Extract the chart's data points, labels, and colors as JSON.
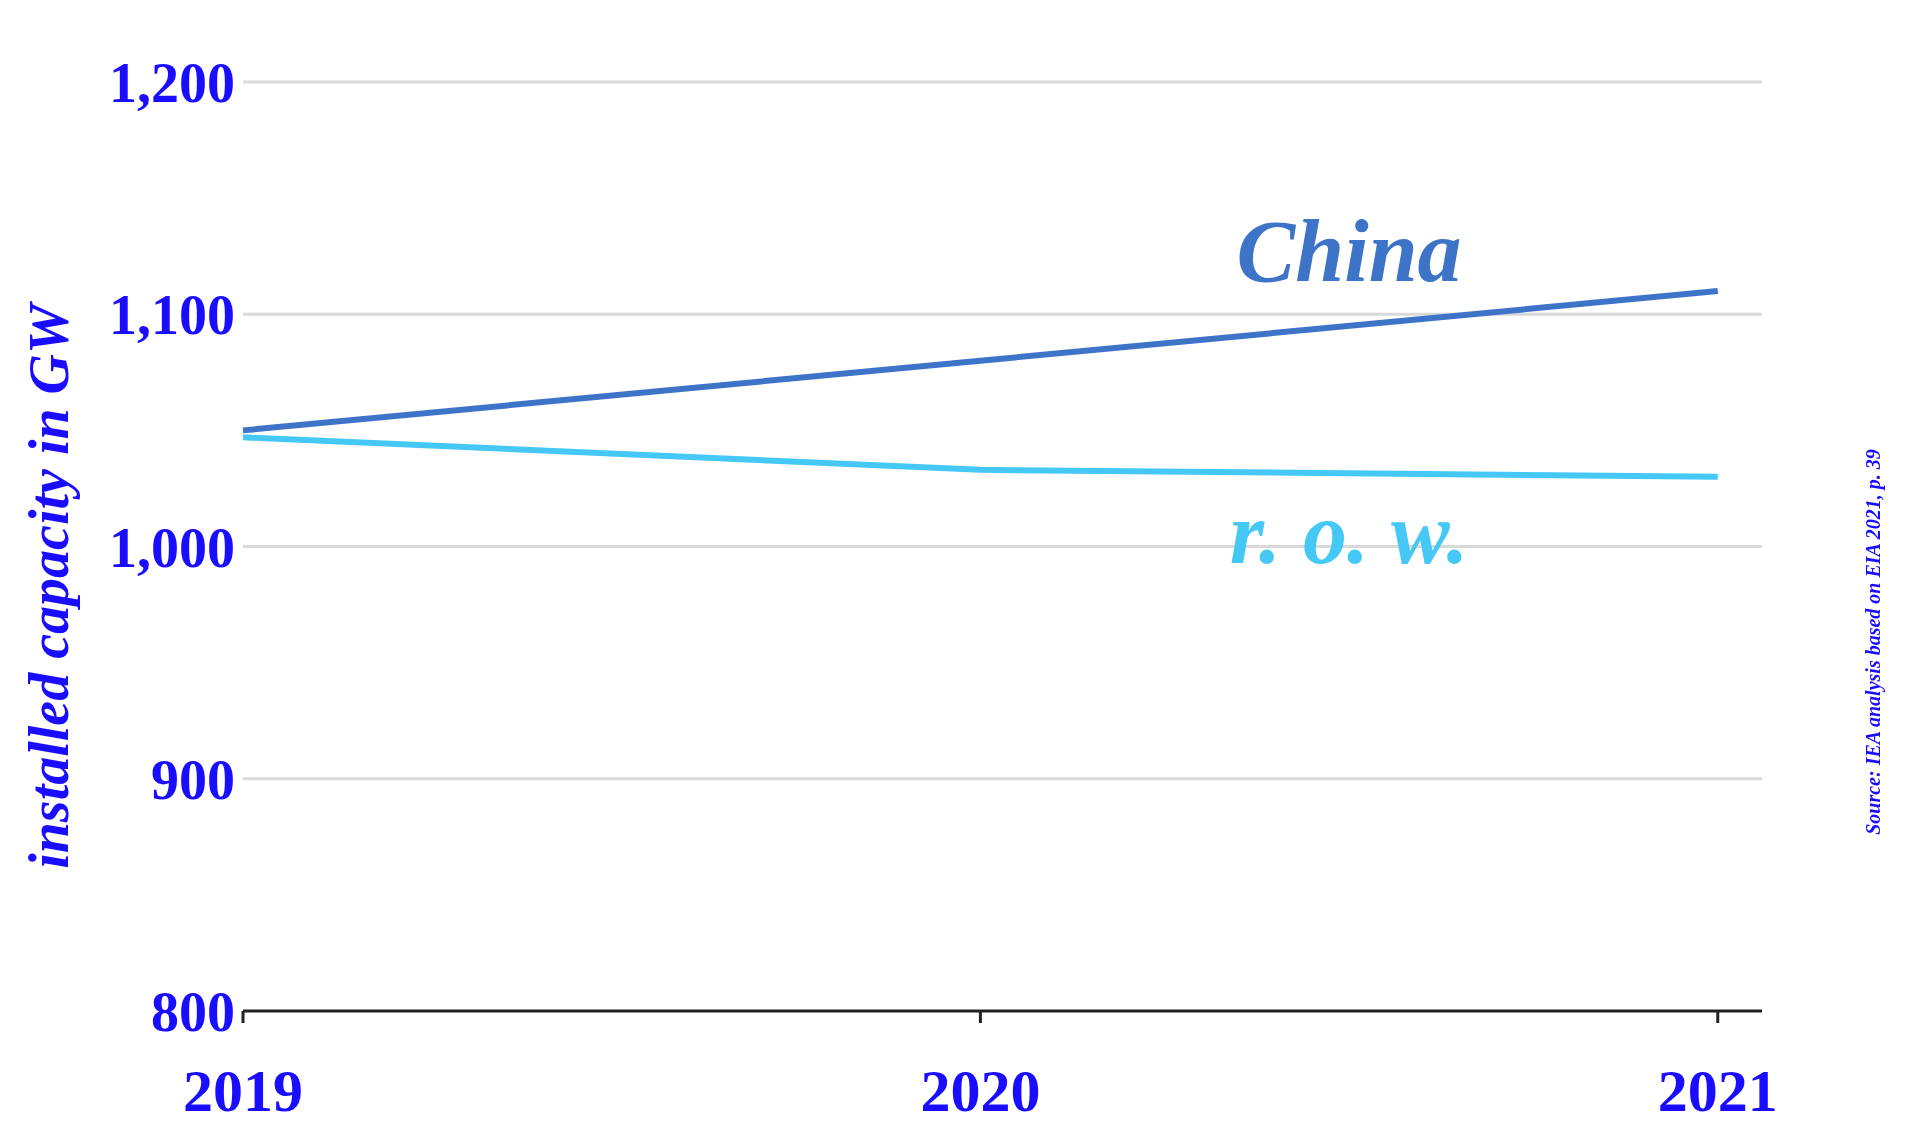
{
  "chart_data": {
    "type": "line",
    "ylabel": "installed capacity in GW",
    "x": [
      2019,
      2020,
      2021
    ],
    "xlim": [
      2019,
      2021.06
    ],
    "xticks": [
      2019,
      2020,
      2021
    ],
    "ylim": [
      800,
      1200
    ],
    "yticks": [
      {
        "value": 800,
        "label": "800"
      },
      {
        "value": 900,
        "label": "900"
      },
      {
        "value": 1000,
        "label": "1,000"
      },
      {
        "value": 1100,
        "label": "1,100"
      },
      {
        "value": 1200,
        "label": "1,200"
      }
    ],
    "grid": "y",
    "legend": false,
    "marker": "none",
    "line_style": "solid",
    "series": [
      {
        "name": "China",
        "color": "#3d74c8",
        "values": [
          1050,
          1080,
          1110
        ]
      },
      {
        "name": "r. o. w.",
        "color": "#45c8f5",
        "values": [
          1047,
          1033,
          1030
        ]
      }
    ],
    "annotations": [
      "Source: IEA analysis based on EIA 2021, p. 39"
    ]
  }
}
